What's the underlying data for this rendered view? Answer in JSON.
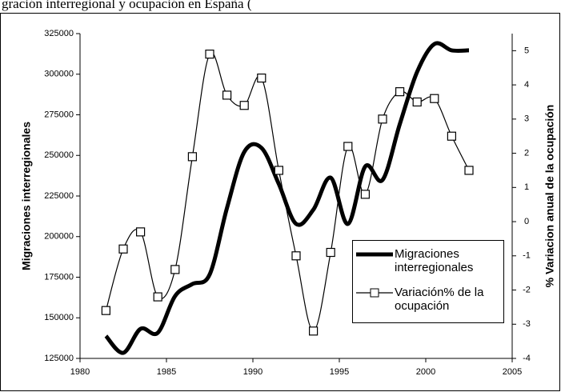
{
  "chart_data": {
    "type": "line",
    "title": "gración interregional y ocupación en España (",
    "y_label": "Migraciones interregionales",
    "y2_label": "% Variacion anual de la ocupación",
    "x": [
      1981.5,
      1982.5,
      1983.5,
      1984.5,
      1985.5,
      1986.5,
      1987.5,
      1988.5,
      1989.5,
      1990.5,
      1991.5,
      1992.5,
      1993.5,
      1994.5,
      1995.5,
      1996.5,
      1997.5,
      1998.5,
      1999.5,
      2000.5,
      2001.5,
      2002.5
    ],
    "series": [
      {
        "name": "Migraciones interregionales",
        "color": "#000000",
        "width": 5,
        "marker": "none",
        "values": [
          138800,
          128400,
          143200,
          140800,
          163400,
          170800,
          176700,
          217600,
          252100,
          254600,
          232400,
          207800,
          216600,
          236300,
          207800,
          243200,
          234900,
          269300,
          301400,
          318600,
          314700,
          314700
        ]
      },
      {
        "name": "Variación% de la ocupación",
        "color": "#000000",
        "width": 1.2,
        "marker": "square",
        "axis": "y2",
        "values": [
          -2.6,
          -0.8,
          -0.3,
          -2.2,
          -1.4,
          1.9,
          4.9,
          3.7,
          3.4,
          4.2,
          1.5,
          -1.0,
          -3.2,
          -0.9,
          2.2,
          0.8,
          3.0,
          3.8,
          3.5,
          3.6,
          2.5,
          1.5
        ]
      }
    ],
    "xlim": [
      1980,
      2005
    ],
    "xticks": [
      1980,
      1985,
      1990,
      1995,
      2000,
      2005
    ],
    "ylim": [
      125000,
      325000
    ],
    "yticks": [
      125000,
      150000,
      175000,
      200000,
      225000,
      250000,
      275000,
      300000,
      325000
    ],
    "y2lim": [
      -4,
      5.5
    ],
    "y2ticks": [
      -4,
      -3,
      -2,
      -1,
      0,
      1,
      2,
      3,
      4,
      5
    ],
    "smooth": true,
    "grid": false
  }
}
